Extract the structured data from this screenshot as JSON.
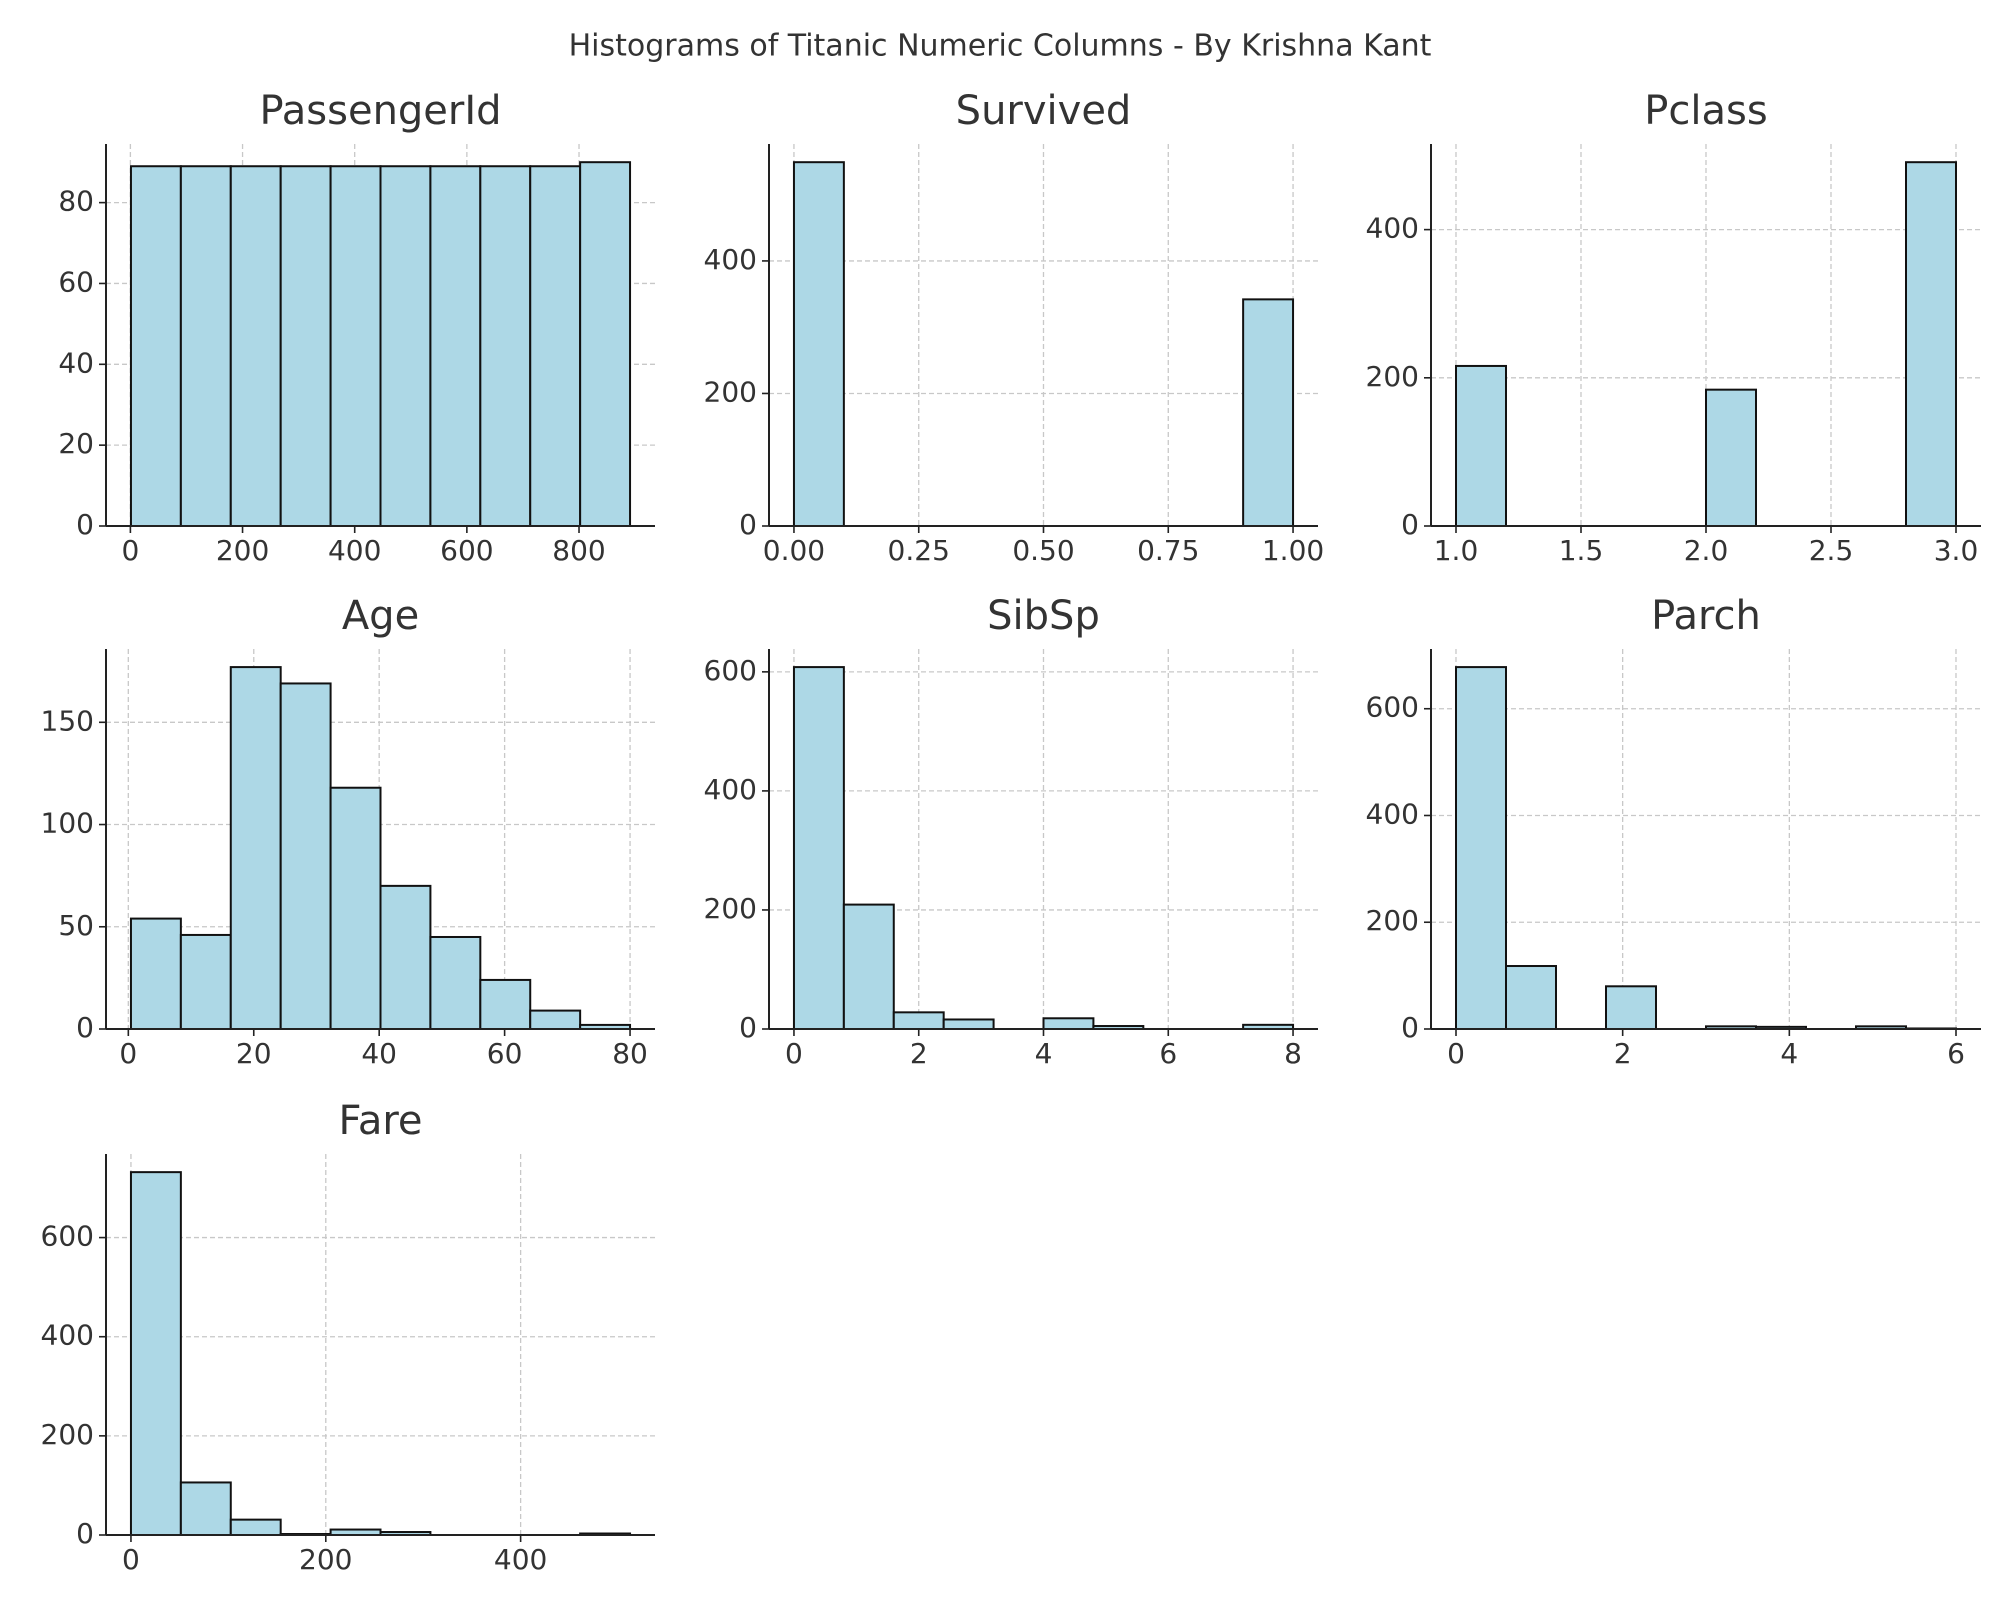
{
  "title": "Histograms of Titanic Numeric Columns - By Krishna Kant",
  "chart_data": [
    {
      "type": "histogram",
      "title": "PassengerId",
      "color": "#add8e6",
      "grid": true,
      "bins": [
        1,
        90,
        179,
        268,
        357,
        446,
        535,
        624,
        713,
        802,
        891
      ],
      "values": [
        89,
        89,
        89,
        89,
        89,
        89,
        89,
        89,
        89,
        90
      ],
      "xlim": [
        -43.5,
        935.5
      ],
      "ylim": [
        0,
        94.5
      ],
      "xticks": [
        0,
        200,
        400,
        600,
        800
      ],
      "yticks": [
        0,
        20,
        40,
        60,
        80
      ]
    },
    {
      "type": "histogram",
      "title": "Survived",
      "color": "#add8e6",
      "grid": true,
      "bins": [
        0,
        0.1,
        0.2,
        0.3,
        0.4,
        0.5,
        0.6,
        0.7,
        0.8,
        0.9,
        1
      ],
      "values": [
        549,
        0,
        0,
        0,
        0,
        0,
        0,
        0,
        0,
        342
      ],
      "xlim": [
        -0.05,
        1.05
      ],
      "ylim": [
        0,
        576.45
      ],
      "xticks": [
        {
          "value": 0,
          "label": "0.00"
        },
        {
          "value": 0.25,
          "label": "0.25"
        },
        {
          "value": 0.5,
          "label": "0.50"
        },
        {
          "value": 0.75,
          "label": "0.75"
        },
        {
          "value": 1,
          "label": "1.00"
        }
      ],
      "yticks": [
        0,
        200,
        400
      ]
    },
    {
      "type": "histogram",
      "title": "Pclass",
      "color": "#add8e6",
      "grid": true,
      "bins": [
        1,
        1.2,
        1.4,
        1.6,
        1.8,
        2,
        2.2,
        2.4,
        2.6,
        2.8,
        3
      ],
      "values": [
        216,
        0,
        0,
        0,
        0,
        184,
        0,
        0,
        0,
        491
      ],
      "xlim": [
        0.9,
        3.1
      ],
      "ylim": [
        0,
        515.55
      ],
      "xticks": [
        {
          "value": 1,
          "label": "1.0"
        },
        1.5,
        {
          "value": 2,
          "label": "2.0"
        },
        2.5,
        {
          "value": 3,
          "label": "3.0"
        }
      ],
      "yticks": [
        0,
        200,
        400
      ]
    },
    {
      "type": "histogram",
      "title": "Age",
      "color": "#add8e6",
      "grid": true,
      "bins": [
        0.42,
        8.378,
        16.336,
        24.294,
        32.252,
        40.21,
        48.168,
        56.126,
        64.084,
        72.042,
        80
      ],
      "values": [
        54,
        46,
        177,
        169,
        118,
        70,
        45,
        24,
        9,
        2
      ],
      "xlim": [
        -3.559,
        83.979
      ],
      "ylim": [
        0,
        185.85
      ],
      "xticks": [
        0,
        20,
        40,
        60,
        80
      ],
      "yticks": [
        0,
        50,
        100,
        150
      ]
    },
    {
      "type": "histogram",
      "title": "SibSp",
      "color": "#add8e6",
      "grid": true,
      "bins": [
        0,
        0.8,
        1.6,
        2.4,
        3.2,
        4,
        4.8,
        5.6,
        6.4,
        7.2,
        8
      ],
      "values": [
        608,
        209,
        28,
        16,
        0,
        18,
        5,
        0,
        0,
        7
      ],
      "xlim": [
        -0.4,
        8.4
      ],
      "ylim": [
        0,
        638.4
      ],
      "xticks": [
        0,
        2,
        4,
        6,
        8
      ],
      "yticks": [
        0,
        200,
        400,
        600
      ]
    },
    {
      "type": "histogram",
      "title": "Parch",
      "color": "#add8e6",
      "grid": true,
      "bins": [
        0,
        0.6,
        1.2,
        1.8,
        2.4,
        3,
        3.6,
        4.2,
        4.8,
        5.4,
        6
      ],
      "values": [
        678,
        118,
        0,
        80,
        0,
        5,
        4,
        0,
        5,
        1
      ],
      "xlim": [
        -0.3,
        6.3
      ],
      "ylim": [
        0,
        711.9
      ],
      "xticks": [
        0,
        2,
        4,
        6
      ],
      "yticks": [
        0,
        200,
        400,
        600
      ]
    },
    {
      "type": "histogram",
      "title": "Fare",
      "color": "#add8e6",
      "grid": true,
      "bins": [
        0,
        51.233,
        102.466,
        153.699,
        204.932,
        256.165,
        307.398,
        358.63,
        409.863,
        461.096,
        512.329
      ],
      "values": [
        732,
        106,
        31,
        2,
        11,
        6,
        0,
        0,
        0,
        3
      ],
      "xlim": [
        -25.616,
        537.945
      ],
      "ylim": [
        0,
        768.6
      ],
      "xticks": [
        0,
        200,
        400
      ],
      "yticks": [
        0,
        200,
        400,
        600
      ]
    }
  ]
}
